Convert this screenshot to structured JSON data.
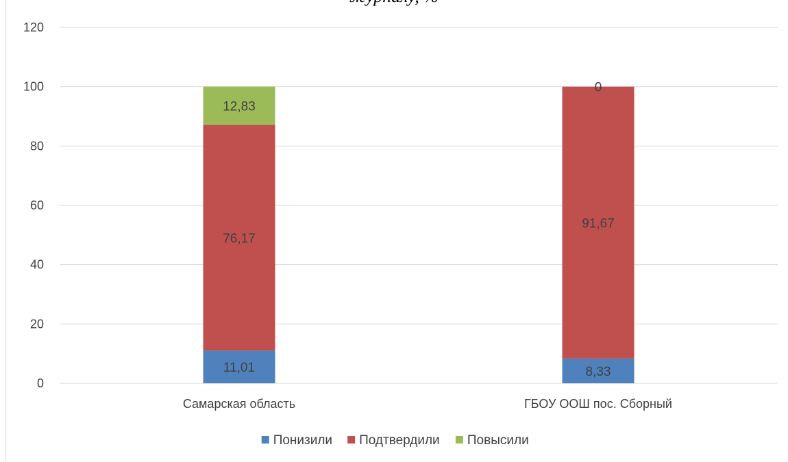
{
  "chart_data": {
    "type": "bar",
    "stacked": true,
    "title": "журналу, %",
    "categories": [
      "Самарская область",
      "ГБОУ ООШ пос. Сборный"
    ],
    "series": [
      {
        "name": "Понизили",
        "values": [
          11.01,
          8.33
        ],
        "labels": [
          "11,01",
          "8,33"
        ],
        "color": "#4f81bd"
      },
      {
        "name": "Подтвердили",
        "values": [
          76.17,
          91.67
        ],
        "labels": [
          "76,17",
          "91,67"
        ],
        "color": "#c0504d"
      },
      {
        "name": "Повысили",
        "values": [
          12.83,
          0
        ],
        "labels": [
          "12,83",
          "0"
        ],
        "color": "#9bbb59"
      }
    ],
    "ylim": [
      0,
      120
    ],
    "yticks": [
      "0",
      "20",
      "40",
      "60",
      "80",
      "100",
      "120"
    ],
    "grid": true,
    "legend": "bottom"
  }
}
